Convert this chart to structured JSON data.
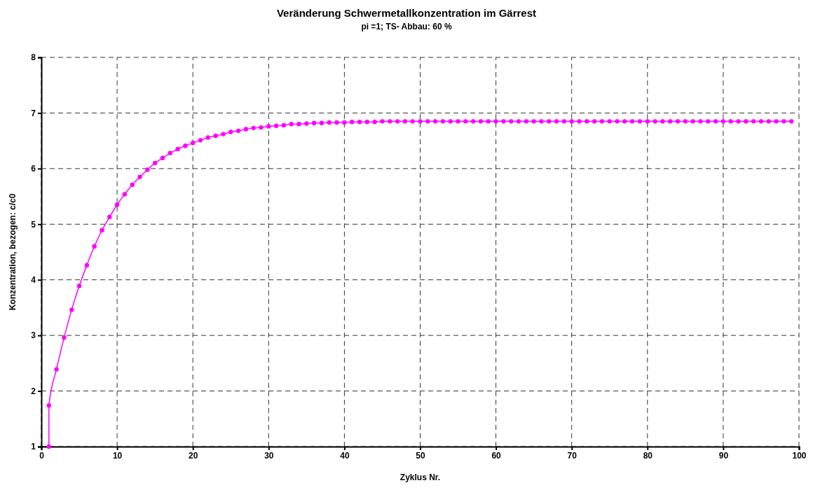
{
  "chart_data": {
    "type": "line",
    "title": "Veränderung Schwermetallkonzentration im Gärrest",
    "subtitle": "pi =1; TS- Abbau: 60 %",
    "xlabel": "Zyklus Nr.",
    "ylabel": "Konzentration, bezogen: c/c0",
    "x": [
      1,
      1,
      2,
      3,
      4,
      5,
      6,
      7,
      8,
      9,
      10,
      11,
      12,
      13,
      14,
      15,
      16,
      17,
      18,
      19,
      20,
      21,
      22,
      23,
      24,
      25,
      26,
      27,
      28,
      29,
      30,
      31,
      32,
      33,
      34,
      35,
      36,
      37,
      38,
      39,
      40,
      41,
      42,
      43,
      44,
      45,
      46,
      47,
      48,
      49,
      50,
      51,
      52,
      53,
      54,
      55,
      56,
      57,
      58,
      59,
      60,
      61,
      62,
      63,
      64,
      65,
      66,
      67,
      68,
      69,
      70,
      71,
      72,
      73,
      74,
      75,
      76,
      77,
      78,
      79,
      80,
      81,
      82,
      83,
      84,
      85,
      86,
      87,
      88,
      89,
      90,
      91,
      92,
      93,
      94,
      95,
      96,
      97,
      98,
      99
    ],
    "series": [
      {
        "color": "#ff00ff",
        "values": [
          1,
          1.74,
          2.39,
          2.96,
          3.46,
          3.89,
          4.26,
          4.6,
          4.89,
          5.13,
          5.35,
          5.54,
          5.71,
          5.85,
          5.98,
          6.1,
          6.19,
          6.28,
          6.35,
          6.41,
          6.46,
          6.51,
          6.56,
          6.59,
          6.62,
          6.66,
          6.68,
          6.71,
          6.73,
          6.74,
          6.76,
          6.77,
          6.78,
          6.8,
          6.8,
          6.81,
          6.82,
          6.82,
          6.83,
          6.83,
          6.83,
          6.84,
          6.84,
          6.84,
          6.84,
          6.85,
          6.85,
          6.85,
          6.85,
          6.85,
          6.85,
          6.85,
          6.85,
          6.85,
          6.85,
          6.85,
          6.85,
          6.85,
          6.85,
          6.85,
          6.85,
          6.85,
          6.85,
          6.85,
          6.85,
          6.85,
          6.85,
          6.85,
          6.85,
          6.85,
          6.85,
          6.85,
          6.85,
          6.85,
          6.85,
          6.85,
          6.85,
          6.85,
          6.85,
          6.85,
          6.85,
          6.85,
          6.85,
          6.85,
          6.85,
          6.85,
          6.85,
          6.85,
          6.85,
          6.85,
          6.85,
          6.85,
          6.85,
          6.85,
          6.85,
          6.85,
          6.85,
          6.85,
          6.85,
          6.85
        ]
      }
    ],
    "xlim": [
      0,
      100
    ],
    "xticks": [
      0,
      10,
      20,
      30,
      40,
      50,
      60,
      70,
      80,
      90,
      100
    ],
    "ylim": [
      1,
      8
    ],
    "yticks": [
      1,
      2,
      3,
      4,
      5,
      6,
      7,
      8
    ],
    "grid": true,
    "marker": "circle",
    "line_style": "solid"
  }
}
